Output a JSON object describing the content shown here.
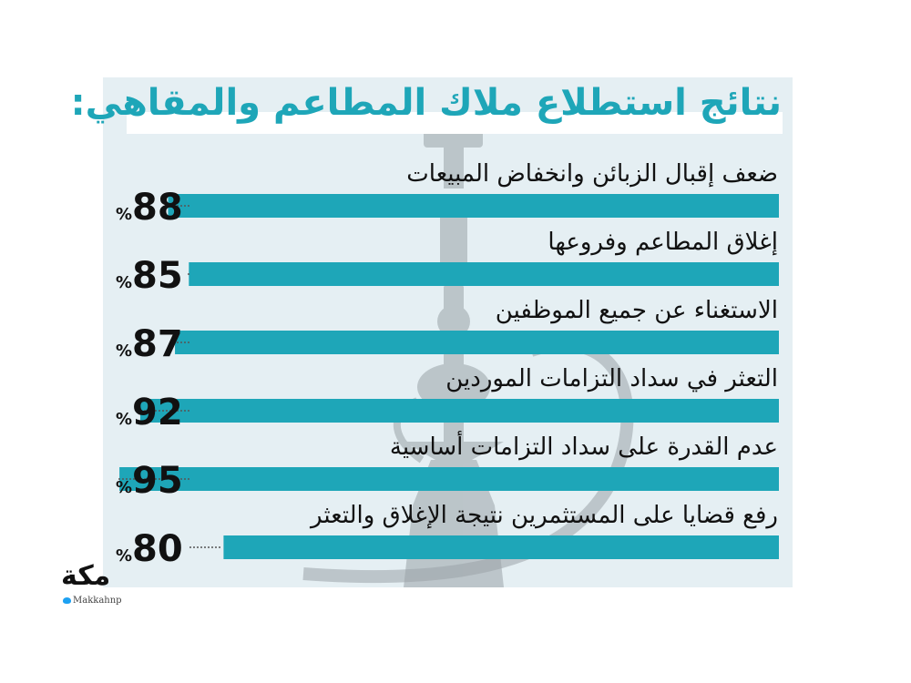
{
  "title": "نتائج استطلاع ملاك المطاعم والمقاهي:",
  "chart_data": {
    "type": "bar",
    "orientation": "horizontal",
    "bar_direction": "right-to-left",
    "unit": "%",
    "categories": [
      "ضعف إقبال الزبائن وانخفاض المبيعات",
      "إغلاق المطاعم وفروعها",
      "الاستغناء عن جميع الموظفين",
      "التعثر في سداد التزامات الموردين",
      "عدم القدرة على سداد التزامات أساسية",
      "رفع قضايا على المستثمرين نتيجة الإغلاق والتعثر"
    ],
    "values": [
      88,
      85,
      87,
      92,
      95,
      80
    ],
    "value_labels": [
      "88%",
      "85%",
      "87%",
      "92%",
      "95%",
      "80%"
    ],
    "xlim": [
      0,
      100
    ],
    "grid": false,
    "legend": "none",
    "colors": {
      "bar": "#1ea6b8",
      "value_text": "#111111",
      "leader": "#555555"
    }
  },
  "colors": {
    "panel": "#e5eff3",
    "title": "#1ea6b8",
    "hookah_watermark": "#9aa3a8"
  },
  "brand": {
    "logo_text": "مكة",
    "handle": "Makkahnp"
  }
}
